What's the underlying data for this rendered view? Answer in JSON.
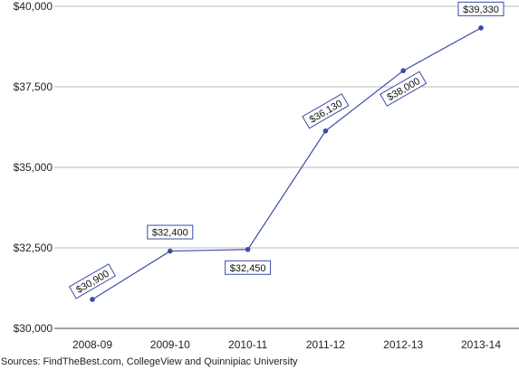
{
  "chart_data": {
    "type": "line",
    "categories": [
      "2008-09",
      "2009-10",
      "2010-11",
      "2011-12",
      "2012-13",
      "2013-14"
    ],
    "series": [
      {
        "values": [
          30900,
          32400,
          32450,
          36130,
          38000,
          39330
        ]
      }
    ],
    "data_labels": [
      "$30,900",
      "$32,400",
      "$32,450",
      "$36,130",
      "$38,000",
      "$39,330"
    ],
    "y_ticks": [
      30000,
      32500,
      35000,
      37500,
      40000
    ],
    "y_tick_labels": [
      "$30,000",
      "$32,500",
      "$35,000",
      "$37,500",
      "$40,000"
    ],
    "ylim": [
      30000,
      40000
    ],
    "grid": true,
    "color": "#3b4ba6"
  },
  "source": "Sources: FindTheBest.com, CollegeView and Quinnipiac University"
}
